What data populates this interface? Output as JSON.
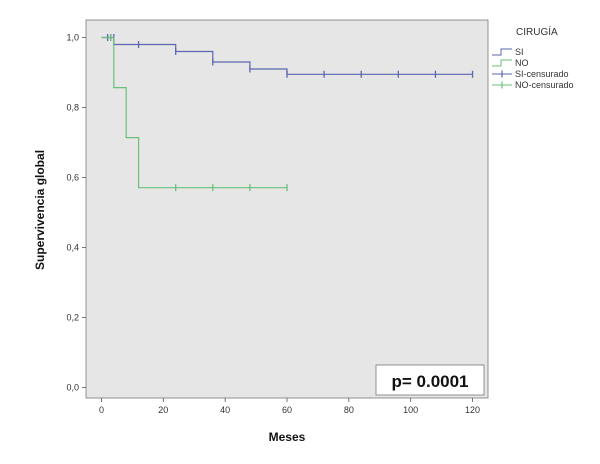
{
  "chart_data": {
    "type": "line",
    "subtype": "kaplan-meier",
    "title": "",
    "xlabel": "Meses",
    "ylabel": "Supervivencia global",
    "xlim": [
      -5,
      125
    ],
    "ylim": [
      -0.03,
      1.05
    ],
    "xticks": [
      0,
      20,
      40,
      60,
      80,
      100,
      120
    ],
    "yticks": [
      0.0,
      0.2,
      0.4,
      0.6,
      0.8,
      1.0
    ],
    "ytick_labels": [
      "0,0",
      "0,2",
      "0,4",
      "0,6",
      "0,8",
      "1,0"
    ],
    "grid": false,
    "background": "#e6e6e6",
    "legend": {
      "title": "CIRUGÍA",
      "placement": "top-right-outside",
      "entries": [
        {
          "label": "SI",
          "kind": "step",
          "color": "#5b67b0"
        },
        {
          "label": "NO",
          "kind": "step",
          "color": "#6cbf7a"
        },
        {
          "label": "SI-censurado",
          "kind": "censor",
          "color": "#5b67b0"
        },
        {
          "label": "NO-censurado",
          "kind": "censor",
          "color": "#6cbf7a"
        }
      ]
    },
    "series": [
      {
        "name": "SI",
        "color": "#5b67b0",
        "steps": [
          [
            0,
            1.0
          ],
          [
            4,
            1.0
          ],
          [
            4,
            0.98
          ],
          [
            24,
            0.98
          ],
          [
            24,
            0.96
          ],
          [
            36,
            0.96
          ],
          [
            36,
            0.93
          ],
          [
            48,
            0.93
          ],
          [
            48,
            0.91
          ],
          [
            60,
            0.91
          ],
          [
            60,
            0.895
          ],
          [
            120,
            0.895
          ]
        ],
        "censored": [
          [
            2,
            1.0
          ],
          [
            3,
            1.0
          ],
          [
            4,
            1.0
          ],
          [
            12,
            0.98
          ],
          [
            24,
            0.96
          ],
          [
            36,
            0.93
          ],
          [
            48,
            0.91
          ],
          [
            60,
            0.895
          ],
          [
            72,
            0.895
          ],
          [
            84,
            0.895
          ],
          [
            96,
            0.895
          ],
          [
            108,
            0.895
          ],
          [
            120,
            0.895
          ]
        ]
      },
      {
        "name": "NO",
        "color": "#6cbf7a",
        "steps": [
          [
            0,
            1.0
          ],
          [
            4,
            1.0
          ],
          [
            4,
            0.857
          ],
          [
            8,
            0.857
          ],
          [
            8,
            0.714
          ],
          [
            12,
            0.714
          ],
          [
            12,
            0.571
          ],
          [
            60,
            0.571
          ]
        ],
        "censored": [
          [
            3,
            1.0
          ],
          [
            24,
            0.571
          ],
          [
            36,
            0.571
          ],
          [
            48,
            0.571
          ],
          [
            60,
            0.571
          ]
        ]
      }
    ],
    "annotations": [
      {
        "text": "p= 0.0001",
        "placement": "bottom-right"
      }
    ]
  }
}
